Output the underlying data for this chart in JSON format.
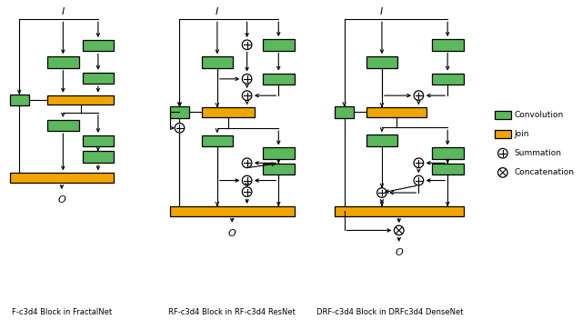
{
  "green": "#5cb85c",
  "orange": "#f0a500",
  "title1": "F-c3d4 Block in FractalNet",
  "title2": "RF-c3d4 Block in RF-c3d4 ResNet",
  "title3": "DRF-c3d4 Block in DRFc3d4 DenseNet",
  "legend": [
    "Convolution",
    "Join",
    "Summation",
    "Concatenation"
  ],
  "GW": 36,
  "GH": 13,
  "JH": 11,
  "CR": 5.5,
  "SGW": 22
}
